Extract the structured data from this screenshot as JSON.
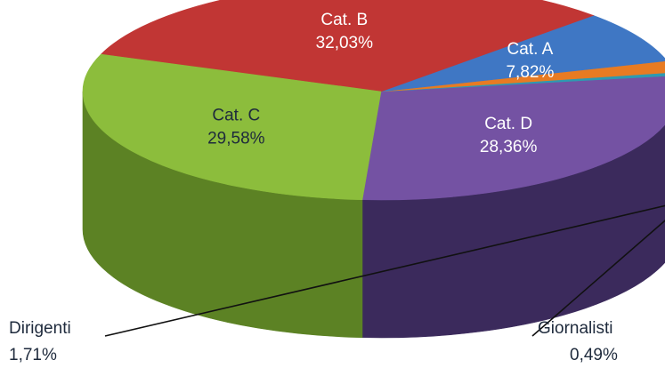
{
  "chart_data": {
    "type": "pie",
    "style": "3d",
    "slices": [
      {
        "label": "Cat. D",
        "value": "28,36%",
        "percent": 28.36,
        "color": "#7452A3",
        "side_color": "#3B2A5C",
        "label_position": "inside"
      },
      {
        "label": "Giornalisti",
        "value": "0,49%",
        "percent": 0.49,
        "color": "#2E9AB0",
        "side_color": "#1B6171",
        "label_position": "outside-right"
      },
      {
        "label": "Dirigenti",
        "value": "1,71%",
        "percent": 1.71,
        "color": "#E87B22",
        "side_color": "#A8510E",
        "label_position": "outside-left"
      },
      {
        "label": "Cat. A",
        "value": "7,82%",
        "percent": 7.82,
        "color": "#3F77C4",
        "side_color": "#27508C",
        "label_position": "inside"
      },
      {
        "label": "Cat. B",
        "value": "32,03%",
        "percent": 32.03,
        "color": "#C13634",
        "side_color": "#7E1E1D",
        "label_position": "inside"
      },
      {
        "label": "Cat. C",
        "value": "29,58%",
        "percent": 29.58,
        "color": "#8CBD3C",
        "side_color": "#5C8224",
        "label_position": "inside"
      }
    ],
    "legend": "none"
  }
}
